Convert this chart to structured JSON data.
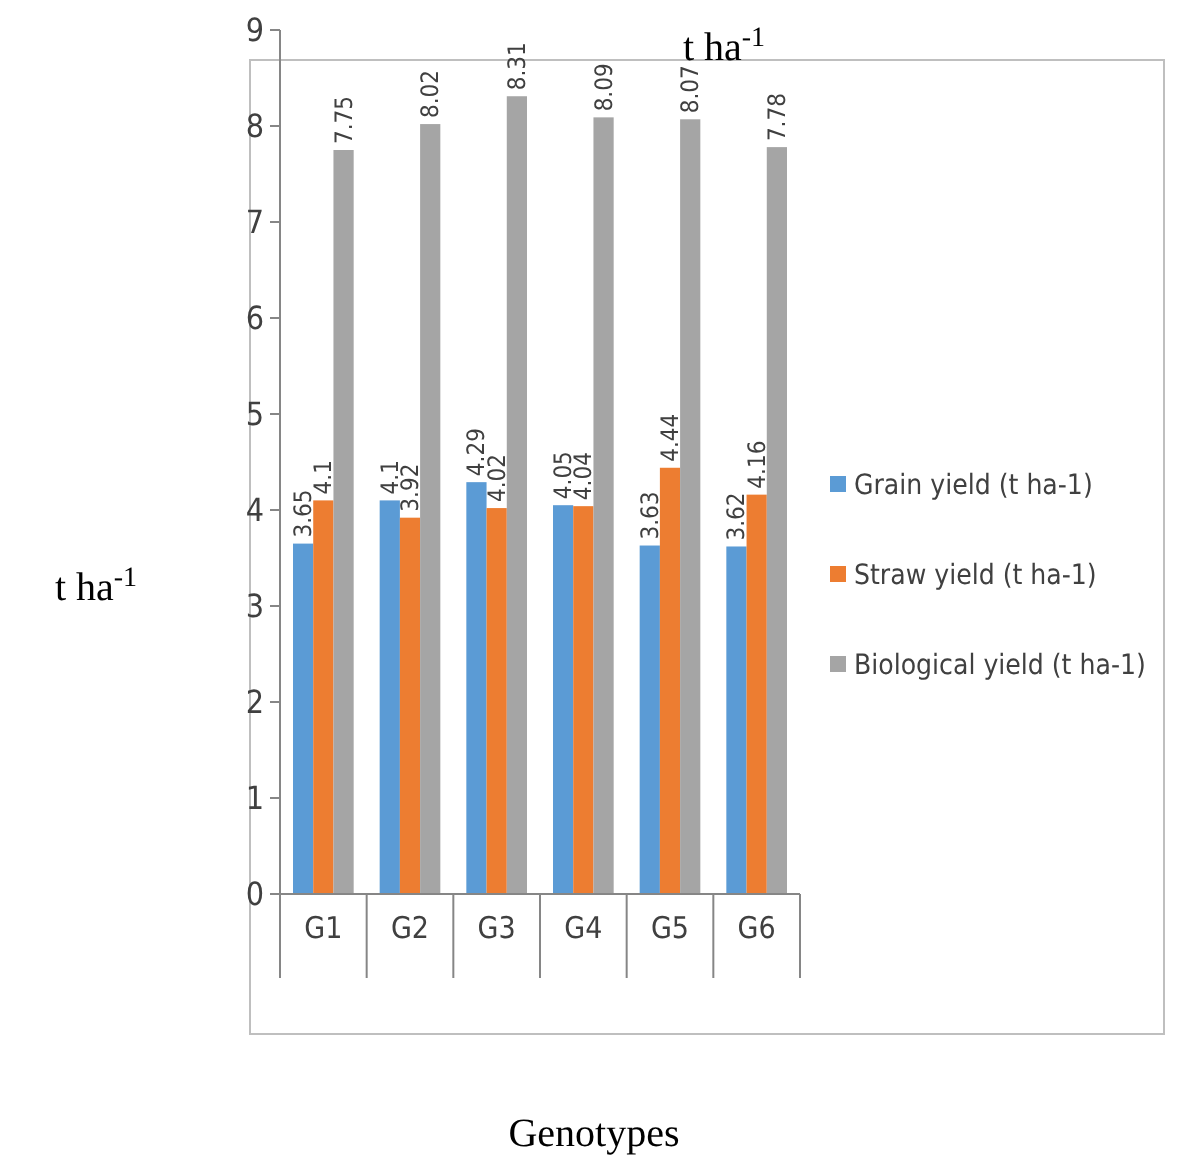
{
  "chart_data": {
    "type": "bar",
    "title": "t ha$^{-1}$",
    "ylabel": "t ha$^{-1}$",
    "xlabel": "Genotypes",
    "categories": [
      "G1",
      "G2",
      "G3",
      "G4",
      "G5",
      "G6"
    ],
    "series": [
      {
        "name": "Grain yield (t ha-1)",
        "color": "#5b9bd5",
        "values": [
          3.65,
          4.1,
          4.29,
          4.05,
          3.63,
          3.62
        ]
      },
      {
        "name": "Straw yield (t ha-1)",
        "color": "#ed7d31",
        "values": [
          4.1,
          3.92,
          4.02,
          4.04,
          4.44,
          4.16
        ]
      },
      {
        "name": "Biological yield (t ha-1)",
        "color": "#a5a5a5",
        "values": [
          7.75,
          8.02,
          8.31,
          8.09,
          8.07,
          7.78
        ]
      }
    ],
    "ylim": [
      0,
      9
    ],
    "yticks": [
      0,
      1,
      2,
      3,
      4,
      5,
      6,
      7,
      8,
      9
    ],
    "data_labels": true,
    "legend": "right",
    "grid": false
  }
}
